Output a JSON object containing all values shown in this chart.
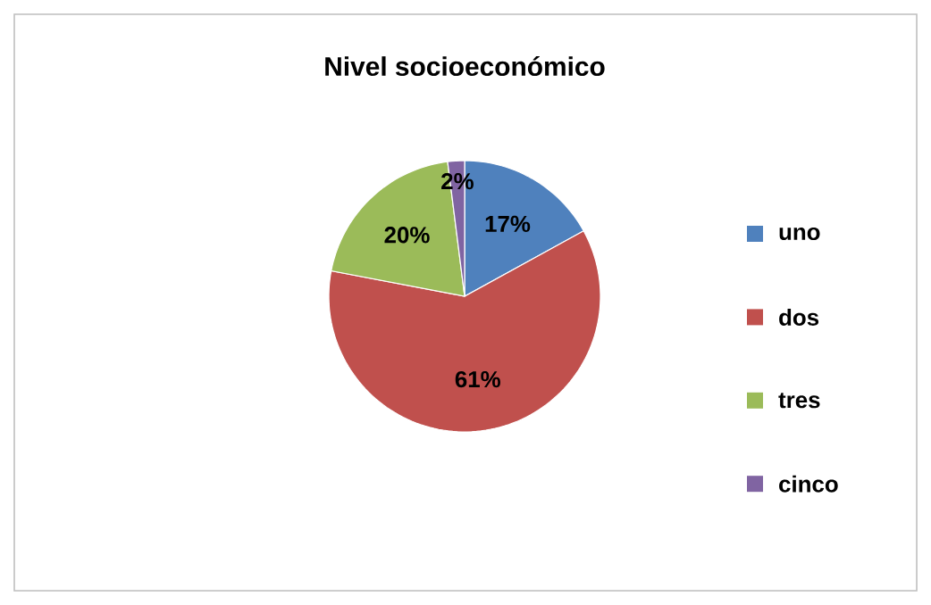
{
  "chart_data": {
    "type": "pie",
    "title": "Nivel socioeconómico",
    "categories": [
      "uno",
      "dos",
      "tres",
      "cinco"
    ],
    "values": [
      17,
      61,
      20,
      2
    ],
    "value_labels": [
      "17%",
      "61%",
      "20%",
      "2%"
    ],
    "colors": [
      "#4f81bd",
      "#c0504d",
      "#9bbb59",
      "#8064a2"
    ],
    "legend": "right"
  }
}
